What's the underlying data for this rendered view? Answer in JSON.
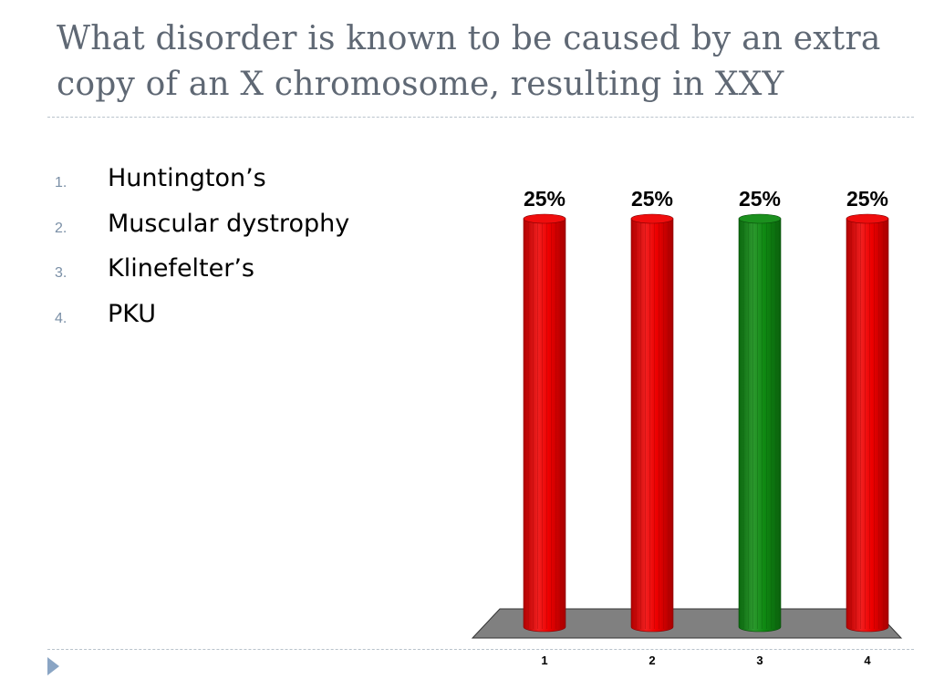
{
  "slide": {
    "title": "What disorder is known to be caused by an extra copy of an X chromosome, resulting in XXY"
  },
  "options": [
    {
      "number": "1.",
      "text": "Huntington’s"
    },
    {
      "number": "2.",
      "text": "Muscular dystrophy"
    },
    {
      "number": "3.",
      "text": "Klinefelter’s"
    },
    {
      "number": "4.",
      "text": "PKU"
    }
  ],
  "chart_data": {
    "type": "bar",
    "title": "",
    "xlabel": "",
    "ylabel": "",
    "categories": [
      "1",
      "2",
      "3",
      "4"
    ],
    "values": [
      25,
      25,
      25,
      25
    ],
    "value_labels": [
      "25%",
      "25%",
      "25%",
      "25%"
    ],
    "ylim": [
      0,
      25
    ],
    "grid": false,
    "legend": "none",
    "bar_colors": [
      "#ee0000",
      "#ee0000",
      "#0f8a12",
      "#ee0000"
    ],
    "floor_color": "#808080"
  },
  "colors": {
    "title_text": "#5f6874",
    "option_number": "#7a8fa6",
    "rule": "#b9c3cc",
    "bullet_arrow": "#8aa5c4"
  }
}
